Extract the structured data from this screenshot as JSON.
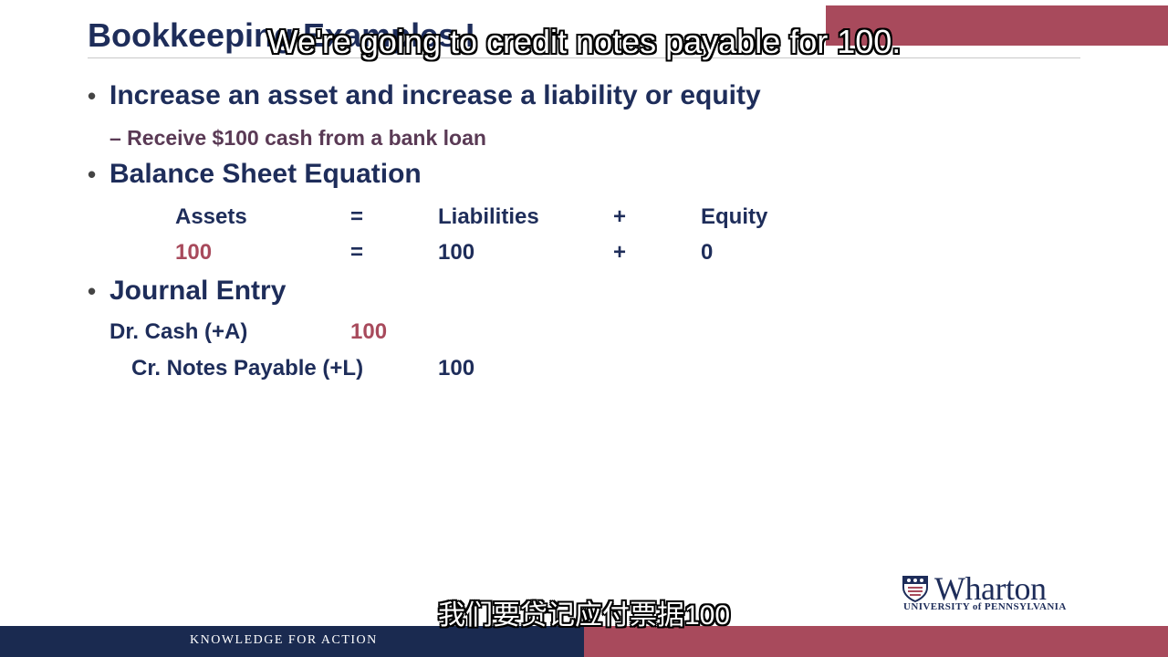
{
  "slide": {
    "title": "Bookkeeping Examples I",
    "bullets": [
      "Increase an asset and increase a liability or equity",
      "Balance Sheet Equation",
      "Journal Entry"
    ],
    "sub_bullet": "– Receive $100 cash from a bank loan",
    "equation": {
      "headers": [
        "Assets",
        "=",
        "Liabilities",
        "+",
        "Equity"
      ],
      "values": [
        "100",
        "=",
        "100",
        "+",
        "0"
      ]
    },
    "journal": {
      "debit_account": "Dr. Cash (+A)",
      "debit_amount": "100",
      "credit_account": "Cr. Notes Payable (+L)",
      "credit_amount": "100"
    }
  },
  "captions": {
    "english": "We're going to credit notes payable for 100.",
    "chinese": "我们要贷记应付票据100"
  },
  "branding": {
    "logo_name": "Wharton",
    "logo_sub": "UNIVERSITY of PENNSYLVANIA",
    "footer": "KNOWLEDGE FOR ACTION"
  },
  "colors": {
    "navy": "#1e2d5a",
    "accent_red": "#a84a5c",
    "footer_navy": "#1a2a50"
  }
}
